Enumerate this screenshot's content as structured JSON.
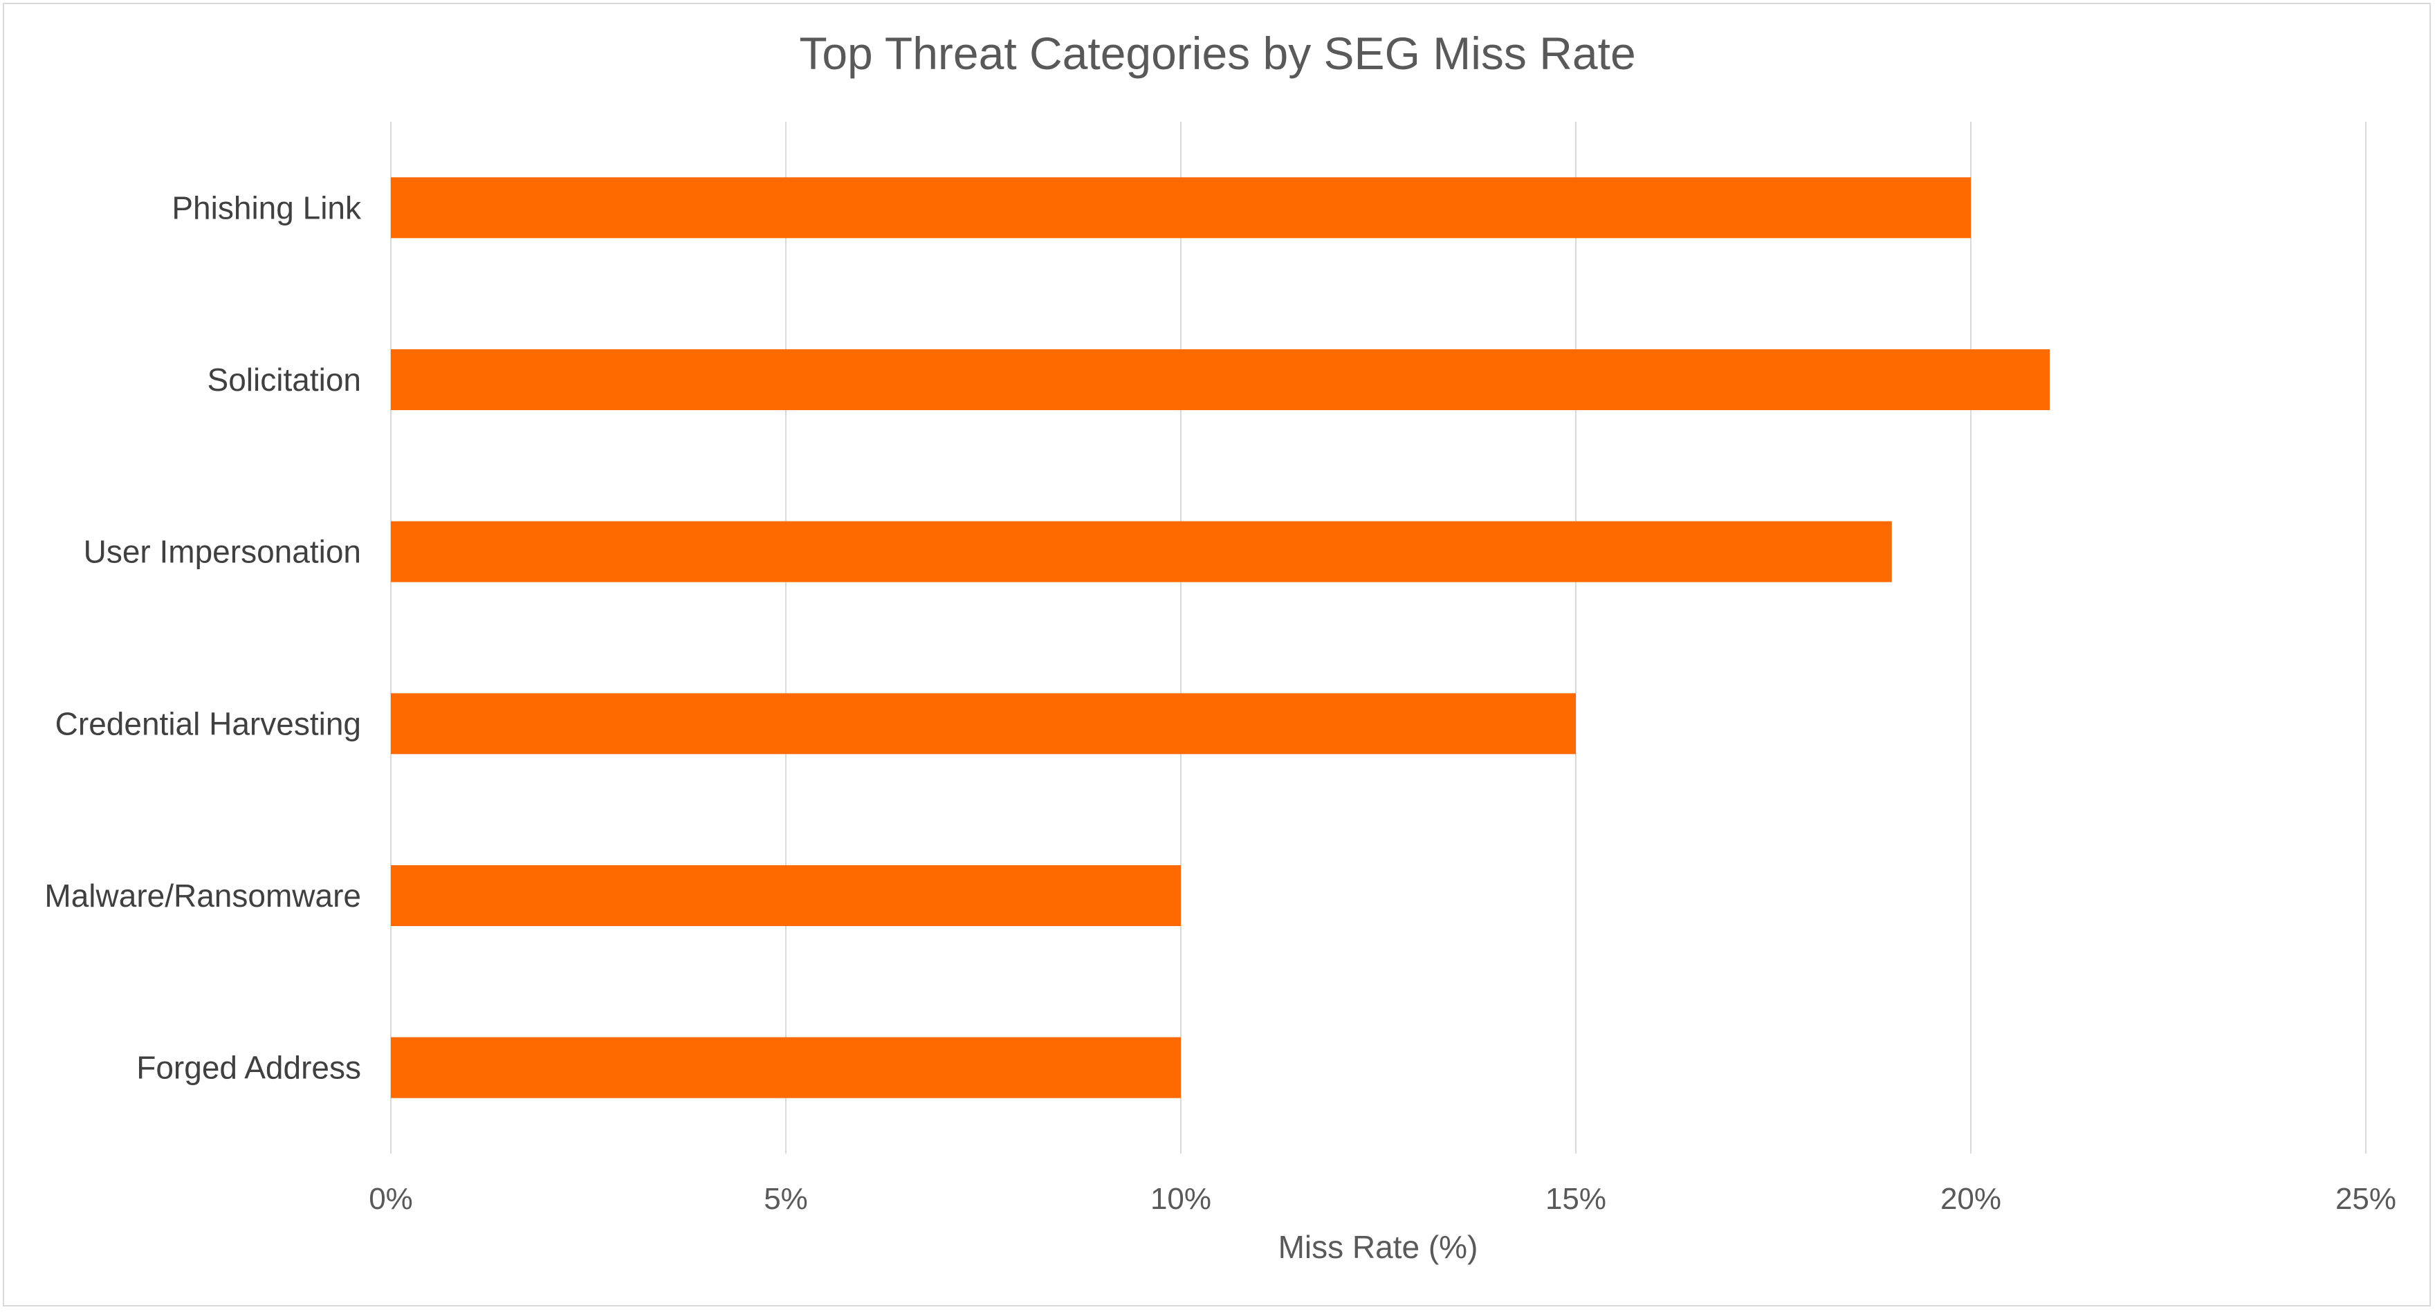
{
  "chart_data": {
    "type": "bar",
    "orientation": "horizontal",
    "title": "Top Threat Categories by SEG Miss Rate",
    "categories": [
      "Phishing Link",
      "Solicitation",
      "User Impersonation",
      "Credential Harvesting",
      "Malware/Ransomware",
      "Forged Address"
    ],
    "series": [
      {
        "name": "Miss Rate (%)",
        "values": [
          20,
          21,
          19,
          15,
          10,
          10
        ]
      }
    ],
    "xlabel": "Miss Rate (%)",
    "ylabel": "",
    "xlim": [
      0,
      25
    ],
    "xticks": [
      0,
      5,
      10,
      15,
      20,
      25
    ],
    "xtick_labels": [
      "0%",
      "5%",
      "10%",
      "15%",
      "20%",
      "25%"
    ],
    "grid": true,
    "legend": "none",
    "bar_color": "#FF6A00",
    "grid_color": "#D9D9D9"
  }
}
